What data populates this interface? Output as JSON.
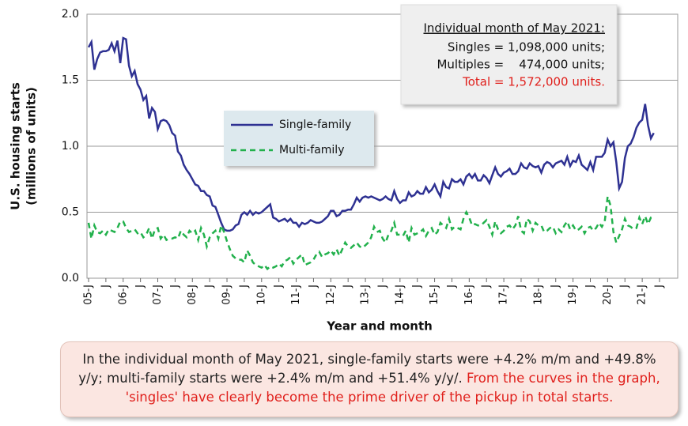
{
  "chart_data": {
    "type": "line",
    "xlabel": "Year and month",
    "ylabel": [
      "U.S. housing starts",
      "(millions of units)"
    ],
    "ylim": [
      0,
      2
    ],
    "yticks": [
      {
        "value": 0,
        "label": "0.0"
      },
      {
        "value": 0.5,
        "label": "0.5"
      },
      {
        "value": 1,
        "label": "1.0"
      },
      {
        "value": 1.5,
        "label": "1.5"
      },
      {
        "value": 2,
        "label": "2.0"
      }
    ],
    "grid": true,
    "legend": "center",
    "categories": [
      "05-J",
      null,
      null,
      null,
      null,
      null,
      "J",
      null,
      null,
      null,
      null,
      null,
      "06-J",
      null,
      null,
      null,
      null,
      null,
      "J",
      null,
      null,
      null,
      null,
      null,
      "07-J",
      null,
      null,
      null,
      null,
      null,
      "J",
      null,
      null,
      null,
      null,
      null,
      "08-J",
      null,
      null,
      null,
      null,
      null,
      "J",
      null,
      null,
      null,
      null,
      null,
      "09-J",
      null,
      null,
      null,
      null,
      null,
      "J",
      null,
      null,
      null,
      null,
      null,
      "10-J",
      null,
      null,
      null,
      null,
      null,
      "J",
      null,
      null,
      null,
      null,
      null,
      "11-J",
      null,
      null,
      null,
      null,
      null,
      "J",
      null,
      null,
      null,
      null,
      null,
      "12-J",
      null,
      null,
      null,
      null,
      null,
      "J",
      null,
      null,
      null,
      null,
      null,
      "13-J",
      null,
      null,
      null,
      null,
      null,
      "J",
      null,
      null,
      null,
      null,
      null,
      "14-J",
      null,
      null,
      null,
      null,
      null,
      "J",
      null,
      null,
      null,
      null,
      null,
      "15-J",
      null,
      null,
      null,
      null,
      null,
      "J",
      null,
      null,
      null,
      null,
      null,
      "16-J",
      null,
      null,
      null,
      null,
      null,
      "J",
      null,
      null,
      null,
      null,
      null,
      "17-J",
      null,
      null,
      null,
      null,
      null,
      "J",
      null,
      null,
      null,
      null,
      null,
      "18-J",
      null,
      null,
      null,
      null,
      null,
      "J",
      null,
      null,
      null,
      null,
      null,
      "19-J",
      null,
      null,
      null,
      null,
      null,
      "J",
      null,
      null,
      null,
      null,
      null,
      "20-J",
      null,
      null,
      null,
      null,
      null,
      "J",
      null,
      null,
      null,
      null,
      null,
      "21-J",
      null,
      null,
      null,
      null,
      null,
      "J"
    ],
    "series": [
      {
        "name": "Single-family",
        "color": "#2e3192",
        "linestyle": "solid",
        "values": [
          1.75,
          1.79,
          1.58,
          1.66,
          1.71,
          1.72,
          1.72,
          1.73,
          1.78,
          1.72,
          1.8,
          1.63,
          1.82,
          1.81,
          1.61,
          1.53,
          1.57,
          1.47,
          1.43,
          1.35,
          1.38,
          1.21,
          1.29,
          1.26,
          1.13,
          1.19,
          1.2,
          1.19,
          1.16,
          1.1,
          1.08,
          0.96,
          0.93,
          0.86,
          0.82,
          0.79,
          0.75,
          0.71,
          0.7,
          0.66,
          0.66,
          0.63,
          0.62,
          0.55,
          0.54,
          0.48,
          0.42,
          0.37,
          0.36,
          0.36,
          0.37,
          0.4,
          0.41,
          0.48,
          0.5,
          0.48,
          0.51,
          0.48,
          0.5,
          0.49,
          0.5,
          0.52,
          0.54,
          0.56,
          0.46,
          0.45,
          0.43,
          0.44,
          0.45,
          0.43,
          0.45,
          0.42,
          0.42,
          0.39,
          0.42,
          0.41,
          0.42,
          0.44,
          0.43,
          0.42,
          0.42,
          0.43,
          0.45,
          0.47,
          0.51,
          0.51,
          0.47,
          0.48,
          0.51,
          0.51,
          0.52,
          0.52,
          0.56,
          0.61,
          0.58,
          0.61,
          0.62,
          0.61,
          0.62,
          0.61,
          0.6,
          0.59,
          0.6,
          0.62,
          0.6,
          0.59,
          0.66,
          0.6,
          0.57,
          0.59,
          0.59,
          0.65,
          0.62,
          0.63,
          0.66,
          0.64,
          0.64,
          0.69,
          0.65,
          0.67,
          0.71,
          0.66,
          0.62,
          0.73,
          0.69,
          0.68,
          0.75,
          0.73,
          0.73,
          0.75,
          0.71,
          0.77,
          0.79,
          0.76,
          0.79,
          0.74,
          0.74,
          0.78,
          0.76,
          0.72,
          0.78,
          0.84,
          0.79,
          0.77,
          0.8,
          0.81,
          0.83,
          0.79,
          0.79,
          0.81,
          0.87,
          0.84,
          0.83,
          0.87,
          0.85,
          0.84,
          0.85,
          0.8,
          0.86,
          0.88,
          0.87,
          0.84,
          0.87,
          0.88,
          0.89,
          0.86,
          0.92,
          0.85,
          0.89,
          0.88,
          0.93,
          0.86,
          0.84,
          0.82,
          0.88,
          0.82,
          0.92,
          0.92,
          0.92,
          0.95,
          1.05,
          1.0,
          1.03,
          0.88,
          0.68,
          0.73,
          0.91,
          1.0,
          1.02,
          1.07,
          1.14,
          1.18,
          1.2,
          1.32,
          1.16,
          1.06,
          1.1,
          null,
          null
        ]
      },
      {
        "name": "Multi-family",
        "color": "#22b14c",
        "linestyle": "dashed",
        "values": [
          0.42,
          0.3,
          0.4,
          0.35,
          0.34,
          0.36,
          0.33,
          0.37,
          0.36,
          0.35,
          0.38,
          0.43,
          0.43,
          0.38,
          0.35,
          0.36,
          0.37,
          0.34,
          0.35,
          0.31,
          0.33,
          0.38,
          0.3,
          0.37,
          0.38,
          0.3,
          0.33,
          0.29,
          0.3,
          0.3,
          0.31,
          0.3,
          0.36,
          0.33,
          0.31,
          0.36,
          0.34,
          0.36,
          0.29,
          0.38,
          0.33,
          0.24,
          0.31,
          0.34,
          0.36,
          0.3,
          0.4,
          0.35,
          0.28,
          0.22,
          0.17,
          0.15,
          0.14,
          0.14,
          0.12,
          0.21,
          0.17,
          0.12,
          0.1,
          0.09,
          0.08,
          0.1,
          0.07,
          0.09,
          0.08,
          0.09,
          0.11,
          0.09,
          0.13,
          0.14,
          0.16,
          0.11,
          0.14,
          0.16,
          0.18,
          0.1,
          0.11,
          0.12,
          0.14,
          0.18,
          0.2,
          0.16,
          0.18,
          0.19,
          0.21,
          0.18,
          0.22,
          0.17,
          0.22,
          0.27,
          0.24,
          0.23,
          0.25,
          0.27,
          0.24,
          0.23,
          0.25,
          0.27,
          0.31,
          0.39,
          0.35,
          0.36,
          0.3,
          0.27,
          0.33,
          0.36,
          0.42,
          0.33,
          0.33,
          0.32,
          0.36,
          0.27,
          0.38,
          0.33,
          0.34,
          0.35,
          0.37,
          0.32,
          0.36,
          0.38,
          0.33,
          0.35,
          0.42,
          0.4,
          0.38,
          0.45,
          0.37,
          0.39,
          0.38,
          0.37,
          0.45,
          0.5,
          0.46,
          0.4,
          0.41,
          0.4,
          0.4,
          0.42,
          0.44,
          0.39,
          0.33,
          0.43,
          0.37,
          0.34,
          0.36,
          0.39,
          0.4,
          0.37,
          0.4,
          0.47,
          0.36,
          0.34,
          0.45,
          0.43,
          0.36,
          0.42,
          0.4,
          0.4,
          0.35,
          0.36,
          0.38,
          0.39,
          0.34,
          0.37,
          0.35,
          0.4,
          0.43,
          0.37,
          0.4,
          0.36,
          0.37,
          0.39,
          0.34,
          0.38,
          0.39,
          0.36,
          0.38,
          0.42,
          0.39,
          0.43,
          0.62,
          0.55,
          0.35,
          0.27,
          0.32,
          0.37,
          0.45,
          0.4,
          0.39,
          0.37,
          0.38,
          0.46,
          0.41,
          0.47,
          0.41,
          0.46,
          0.47,
          null,
          null
        ]
      }
    ],
    "annotation": {
      "title": "Individual month of May 2021:",
      "lines": [
        "Singles = 1,098,000 units;",
        "Multiples =    474,000 units;"
      ],
      "highlight": "Total = 1,572,000 units."
    }
  },
  "note": {
    "text": "In the individual month of May 2021, single-family starts were +4.2% m/m and +49.8% y/y; multi-family starts were +2.4% m/m and +51.4% y/y/.",
    "highlight": "From the curves in the graph, 'singles' have clearly become the prime driver of the pickup in total starts."
  }
}
